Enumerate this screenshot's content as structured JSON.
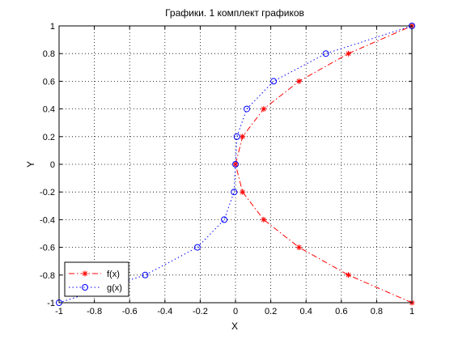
{
  "chart_data": {
    "type": "line",
    "title": "Графики. 1 комплект графиков",
    "xlabel": "X",
    "ylabel": "Y",
    "xlim": [
      -1,
      1
    ],
    "ylim": [
      -1,
      1
    ],
    "xticks": [
      -1,
      -0.8,
      -0.6,
      -0.4,
      -0.2,
      0,
      0.2,
      0.4,
      0.6,
      0.8,
      1
    ],
    "yticks": [
      -1,
      -0.8,
      -0.6,
      -0.4,
      -0.2,
      0,
      0.2,
      0.4,
      0.6,
      0.8,
      1
    ],
    "xtick_labels": [
      "-1",
      "-0.8",
      "-0.6",
      "-0.4",
      "-0.2",
      "0",
      "0.2",
      "0.4",
      "0.6",
      "0.8",
      "1"
    ],
    "ytick_labels": [
      "-1",
      "-0.8",
      "-0.6",
      "-0.4",
      "-0.2",
      "0",
      "0.2",
      "0.4",
      "0.6",
      "0.8",
      "1"
    ],
    "grid": true,
    "legend_position": "bottom-left",
    "series": [
      {
        "name": "f(x)",
        "color": "#ff0000",
        "marker": "asterisk",
        "linestyle": "dash-dot",
        "x": [
          1,
          0.64,
          0.36,
          0.16,
          0.04,
          0,
          0.04,
          0.16,
          0.36,
          0.64,
          1
        ],
        "y": [
          -1,
          -0.8,
          -0.6,
          -0.4,
          -0.2,
          0,
          0.2,
          0.4,
          0.6,
          0.8,
          1
        ]
      },
      {
        "name": "g(x)",
        "color": "#0000ff",
        "marker": "circle",
        "linestyle": "dotted",
        "x": [
          -1,
          -0.512,
          -0.216,
          -0.064,
          -0.008,
          0,
          0.008,
          0.064,
          0.216,
          0.512,
          1
        ],
        "y": [
          -1,
          -0.8,
          -0.6,
          -0.4,
          -0.2,
          0,
          0.2,
          0.4,
          0.6,
          0.8,
          1
        ]
      }
    ]
  }
}
